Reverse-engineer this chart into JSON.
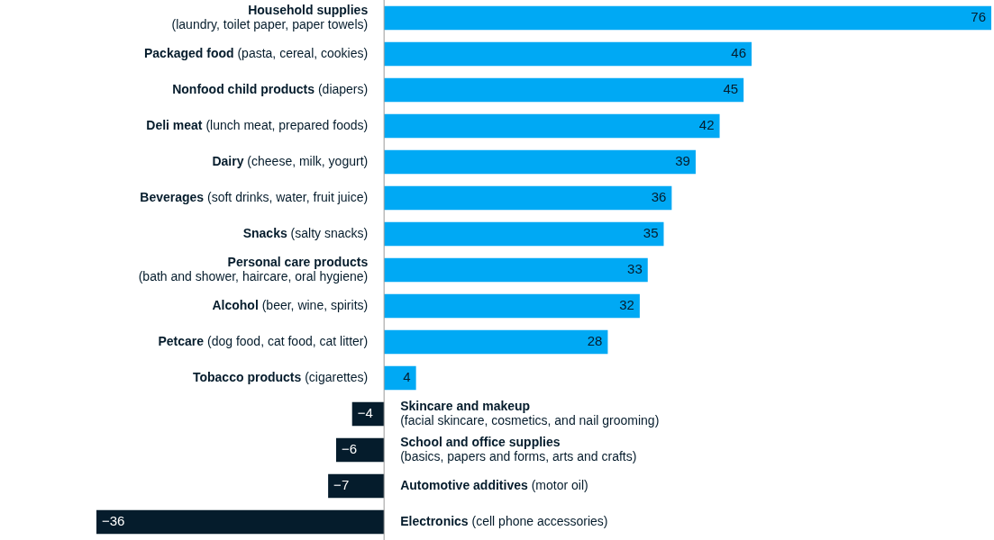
{
  "chart_data": {
    "type": "bar",
    "orientation": "horizontal",
    "data_labels": true,
    "legend": false,
    "categories": [
      "Household supplies\n(laundry, toilet paper, paper towels)",
      "Packaged food (pasta, cereal, cookies)",
      "Nonfood child products (diapers)",
      "Deli meat (lunch meat, prepared foods)",
      "Dairy (cheese, milk, yogurt)",
      "Beverages (soft drinks, water, fruit juice)",
      "Snacks (salty snacks)",
      "Personal care products\n(bath and shower, haircare, oral hygiene)",
      "Alcohol (beer, wine, spirits)",
      "Petcare (dog food, cat food, cat litter)",
      "Tobacco products (cigarettes)",
      "Skincare and makeup\n(facial skincare, cosmetics, and nail grooming)",
      "School and office supplies\n(basics, papers and forms, arts and crafts)",
      "Automotive additives (motor oil)",
      "Electronics (cell phone accessories)"
    ],
    "values": [
      76,
      46,
      45,
      42,
      39,
      36,
      35,
      33,
      32,
      28,
      4,
      -4,
      -6,
      -7,
      -36
    ],
    "colors": [
      "#00a9f4",
      "#00a9f4",
      "#00a9f4",
      "#00a9f4",
      "#00a9f4",
      "#00a9f4",
      "#00a9f4",
      "#00a9f4",
      "#00a9f4",
      "#00a9f4",
      "#00a9f4",
      "#051c2c",
      "#051c2c",
      "#051c2c",
      "#051c2c"
    ]
  }
}
